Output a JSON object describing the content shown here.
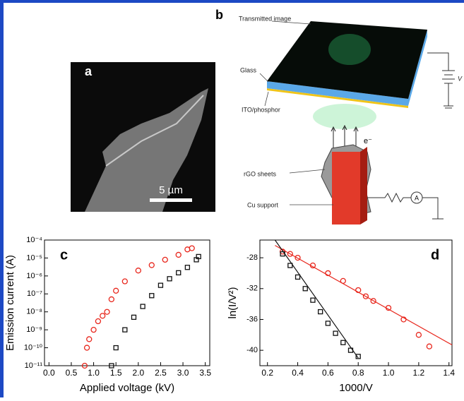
{
  "panels": {
    "a": {
      "label": "a",
      "scale_bar": "5 µm"
    },
    "b": {
      "label": "b",
      "transmitted_image": "Transmitted image",
      "glass": "Glass",
      "ito_phosphor": "ITO/phosphor",
      "electron": "e⁻",
      "voltage": "V",
      "rgo_sheets": "rGO sheets",
      "cu_support": "Cu support",
      "ammeter": "A"
    }
  },
  "chart_data": [
    {
      "type": "scatter",
      "panel_label": "c",
      "x_label": "Applied voltage (kV)",
      "y_label": "Emission current (A)",
      "ylog": true,
      "xlim": [
        -0.1,
        3.6
      ],
      "ylim": [
        1e-11,
        0.0001
      ],
      "xticks": [
        {
          "value": 0,
          "label": "0.0"
        },
        0.5,
        {
          "value": 1,
          "label": "1.0"
        },
        1.5,
        {
          "value": 2,
          "label": "2.0"
        },
        2.5,
        {
          "value": 3,
          "label": "3.0"
        },
        3.5
      ],
      "yticks": [
        {
          "value": 1e-11,
          "label": "10⁻¹¹"
        },
        {
          "value": 1e-10,
          "label": "10⁻¹⁰"
        },
        {
          "value": 1e-09,
          "label": "10⁻⁹"
        },
        {
          "value": 1e-08,
          "label": "10⁻⁸"
        },
        {
          "value": 1e-07,
          "label": "10⁻⁷"
        },
        {
          "value": 1e-06,
          "label": "10⁻⁶"
        },
        {
          "value": 1e-05,
          "label": "10⁻⁵"
        },
        {
          "value": 0.0001,
          "label": "10⁻⁴"
        }
      ],
      "series": [
        {
          "marker": "circle",
          "color": "#e8261c",
          "x": [
            0.8,
            0.85,
            0.9,
            1.0,
            1.1,
            1.2,
            1.3,
            1.4,
            1.5,
            1.7,
            2.0,
            2.3,
            2.6,
            2.9,
            3.1,
            3.2
          ],
          "values": [
            1e-11,
            1e-10,
            3e-10,
            1e-09,
            3e-09,
            6e-09,
            1e-08,
            5e-08,
            1.5e-07,
            5e-07,
            2e-06,
            4e-06,
            8e-06,
            1.5e-05,
            3e-05,
            3.5e-05
          ]
        },
        {
          "marker": "square",
          "color": "#111111",
          "x": [
            1.4,
            1.5,
            1.7,
            1.9,
            2.1,
            2.3,
            2.5,
            2.7,
            2.9,
            3.1,
            3.3,
            3.35
          ],
          "values": [
            1e-11,
            1e-10,
            1e-09,
            5e-09,
            2e-08,
            8e-08,
            3e-07,
            7e-07,
            1.5e-06,
            3e-06,
            8e-06,
            1.2e-05
          ]
        }
      ]
    },
    {
      "type": "scatter",
      "panel_label": "d",
      "x_label": "1000/V",
      "y_label": "ln(I/V²)",
      "ylog": false,
      "xlim": [
        0.15,
        1.42
      ],
      "ylim": [
        -42,
        -25.7
      ],
      "xticks": [
        0.2,
        0.4,
        0.6,
        0.8,
        {
          "value": 1,
          "label": "1.0"
        },
        1.2,
        1.4
      ],
      "yticks": [
        -40,
        -36,
        -32,
        -28
      ],
      "series": [
        {
          "marker": "circle",
          "color": "#e8261c",
          "x": [
            0.3,
            0.35,
            0.4,
            0.5,
            0.6,
            0.7,
            0.8,
            0.85,
            0.9,
            1.0,
            1.1,
            1.2,
            1.27
          ],
          "values": [
            -27.2,
            -27.5,
            -28,
            -29,
            -30,
            -31,
            -32.2,
            -33,
            -33.6,
            -34.5,
            -36,
            -38,
            -39.5
          ]
        },
        {
          "marker": "square",
          "color": "#111111",
          "x": [
            0.3,
            0.35,
            0.4,
            0.45,
            0.5,
            0.55,
            0.6,
            0.65,
            0.7,
            0.75,
            0.8
          ],
          "values": [
            -27.5,
            -29,
            -30.5,
            -32,
            -33.5,
            -35,
            -36.5,
            -37.8,
            -39,
            -40,
            -40.8
          ]
        },
        {
          "style": "line",
          "color": "#e8261c",
          "x": [
            0.25,
            1.42
          ],
          "values": [
            -26.4,
            -39.3
          ]
        },
        {
          "style": "line",
          "color": "#111111",
          "x": [
            0.25,
            0.8
          ],
          "values": [
            -25.7,
            -41
          ]
        }
      ]
    }
  ]
}
